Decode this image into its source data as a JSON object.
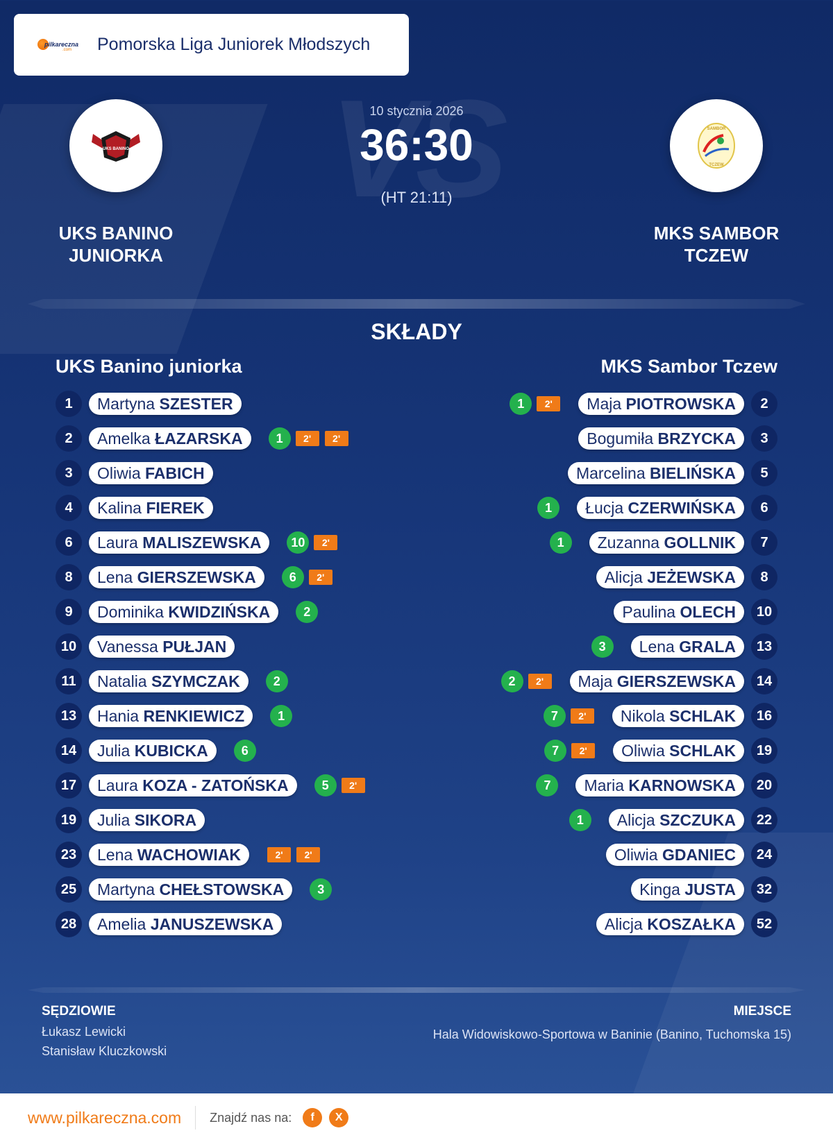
{
  "league": {
    "name": "Pomorska Liga Juniorek Młodszych"
  },
  "match": {
    "date": "10 stycznia 2026",
    "score": "36:30",
    "halftime": "(HT 21:11)"
  },
  "watermark": "VS",
  "home": {
    "name_upper": "UKS BANINO JUNIORKA",
    "name": "UKS Banino juniorka",
    "logo_text": "UKS BANINO",
    "players": [
      {
        "num": "1",
        "first": "Martyna",
        "last": "SZESTER",
        "goals": "",
        "susp": []
      },
      {
        "num": "2",
        "first": "Amelka",
        "last": "ŁAZARSKA",
        "goals": "1",
        "susp": [
          "2'",
          "2'"
        ]
      },
      {
        "num": "3",
        "first": "Oliwia",
        "last": "FABICH",
        "goals": "",
        "susp": []
      },
      {
        "num": "4",
        "first": "Kalina",
        "last": "FIEREK",
        "goals": "",
        "susp": []
      },
      {
        "num": "6",
        "first": "Laura",
        "last": "MALISZEWSKA",
        "goals": "10",
        "susp": [
          "2'"
        ]
      },
      {
        "num": "8",
        "first": "Lena",
        "last": "GIERSZEWSKA",
        "goals": "6",
        "susp": [
          "2'"
        ]
      },
      {
        "num": "9",
        "first": "Dominika",
        "last": "KWIDZIŃSKA",
        "goals": "2",
        "susp": []
      },
      {
        "num": "10",
        "first": "Vanessa",
        "last": "PUŁJAN",
        "goals": "",
        "susp": []
      },
      {
        "num": "11",
        "first": "Natalia",
        "last": "SZYMCZAK",
        "goals": "2",
        "susp": []
      },
      {
        "num": "13",
        "first": "Hania",
        "last": "RENKIEWICZ",
        "goals": "1",
        "susp": []
      },
      {
        "num": "14",
        "first": "Julia",
        "last": "KUBICKA",
        "goals": "6",
        "susp": []
      },
      {
        "num": "17",
        "first": "Laura",
        "last": "KOZA - ZATOŃSKA",
        "goals": "5",
        "susp": [
          "2'"
        ]
      },
      {
        "num": "19",
        "first": "Julia",
        "last": "SIKORA",
        "goals": "",
        "susp": []
      },
      {
        "num": "23",
        "first": "Lena",
        "last": "WACHOWIAK",
        "goals": "",
        "susp": [
          "2'",
          "2'"
        ]
      },
      {
        "num": "25",
        "first": "Martyna",
        "last": "CHEŁSTOWSKA",
        "goals": "3",
        "susp": []
      },
      {
        "num": "28",
        "first": "Amelia",
        "last": "JANUSZEWSKA",
        "goals": "",
        "susp": []
      }
    ]
  },
  "away": {
    "name_upper": "MKS SAMBOR TCZEW",
    "name": "MKS Sambor Tczew",
    "logo_text": "SAMBOR TCZEW",
    "players": [
      {
        "num": "2",
        "first": "Maja",
        "last": "PIOTROWSKA",
        "goals": "1",
        "susp": [
          "2'"
        ]
      },
      {
        "num": "3",
        "first": "Bogumiła",
        "last": "BRZYCKA",
        "goals": "",
        "susp": []
      },
      {
        "num": "5",
        "first": "Marcelina",
        "last": "BIELIŃSKA",
        "goals": "",
        "susp": []
      },
      {
        "num": "6",
        "first": "Łucja",
        "last": "CZERWIŃSKA",
        "goals": "1",
        "susp": []
      },
      {
        "num": "7",
        "first": "Zuzanna",
        "last": "GOLLNIK",
        "goals": "1",
        "susp": []
      },
      {
        "num": "8",
        "first": "Alicja",
        "last": "JEŻEWSKA",
        "goals": "",
        "susp": []
      },
      {
        "num": "10",
        "first": "Paulina",
        "last": "OLECH",
        "goals": "",
        "susp": []
      },
      {
        "num": "13",
        "first": "Lena",
        "last": "GRALA",
        "goals": "3",
        "susp": []
      },
      {
        "num": "14",
        "first": "Maja",
        "last": "GIERSZEWSKA",
        "goals": "2",
        "susp": [
          "2'"
        ]
      },
      {
        "num": "16",
        "first": "Nikola",
        "last": "SCHLAK",
        "goals": "7",
        "susp": [
          "2'"
        ]
      },
      {
        "num": "19",
        "first": "Oliwia",
        "last": "SCHLAK",
        "goals": "7",
        "susp": [
          "2'"
        ]
      },
      {
        "num": "20",
        "first": "Maria",
        "last": "KARNOWSKA",
        "goals": "7",
        "susp": []
      },
      {
        "num": "22",
        "first": "Alicja",
        "last": "SZCZUKA",
        "goals": "1",
        "susp": []
      },
      {
        "num": "24",
        "first": "Oliwia",
        "last": "GDANIEC",
        "goals": "",
        "susp": []
      },
      {
        "num": "32",
        "first": "Kinga",
        "last": "JUSTA",
        "goals": "",
        "susp": []
      },
      {
        "num": "52",
        "first": "Alicja",
        "last": "KOSZAŁKA",
        "goals": "",
        "susp": []
      }
    ]
  },
  "lineups_title": "SKŁADY",
  "referees": {
    "title": "SĘDZIOWIE",
    "names": [
      "Łukasz Lewicki",
      "Stanisław Kluczkowski"
    ]
  },
  "venue": {
    "title": "MIEJSCE",
    "text": "Hala Widowiskowo-Sportowa w Baninie (Banino, Tuchomska 15)"
  },
  "footer": {
    "url": "www.pilkareczna.com",
    "find_us": "Znajdź nas na:",
    "social": [
      {
        "icon": "facebook-icon",
        "glyph": "f"
      },
      {
        "icon": "x-icon",
        "glyph": "X"
      }
    ]
  },
  "brand": {
    "logo_text": "pilkareczna",
    "logo_sub": ".com"
  },
  "colors": {
    "primary": "#173679",
    "accent": "#f07b18",
    "goal": "#24b14d",
    "number_bg": "#0f2663"
  }
}
